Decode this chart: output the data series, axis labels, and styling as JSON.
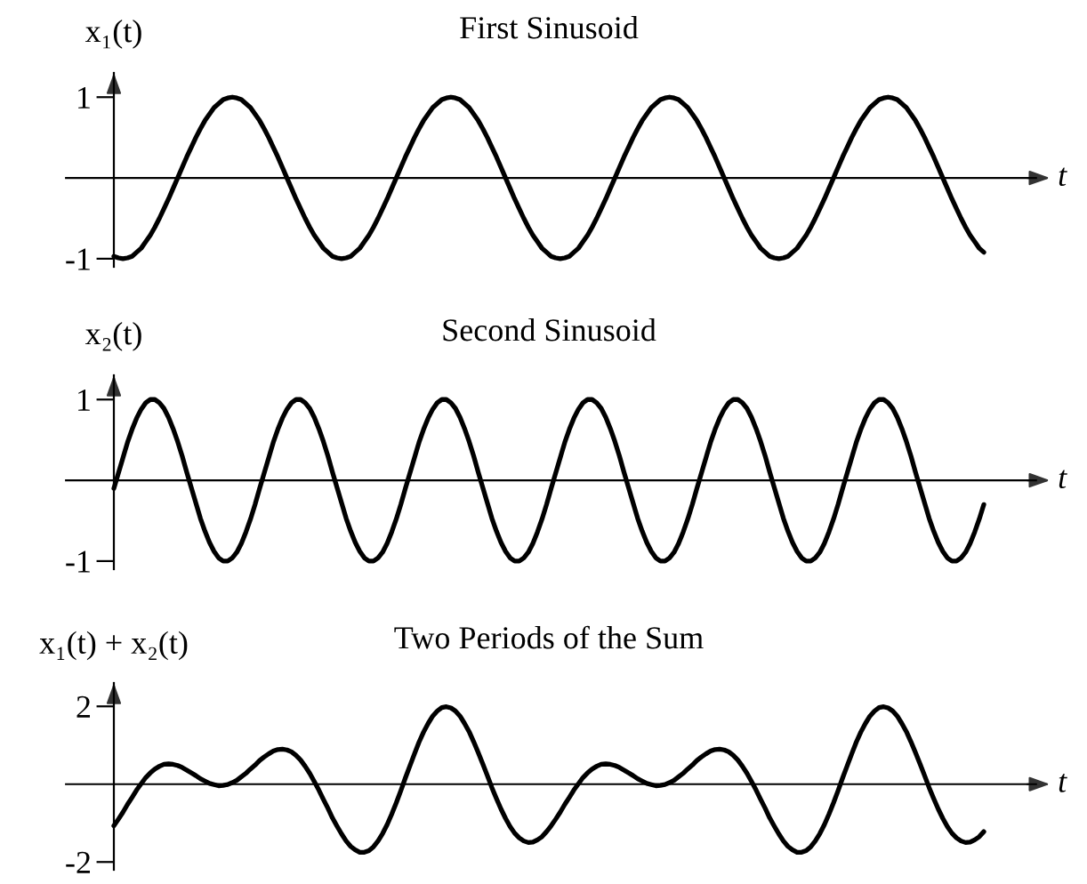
{
  "chart_data": [
    {
      "type": "line",
      "title": "First Sinusoid",
      "ylabel": "x₁(t)",
      "xlabel": "t",
      "ylim": [
        -1.1,
        1.3
      ],
      "yticks": [
        -1,
        1
      ],
      "grid": false,
      "categories": [
        null,
        null,
        null,
        null,
        null,
        null,
        null,
        null,
        null,
        null,
        null,
        null,
        null,
        null,
        null,
        null,
        null,
        null,
        null,
        null,
        null,
        null,
        null,
        null,
        null,
        null,
        null,
        null,
        null,
        null,
        null,
        null,
        null,
        null,
        null,
        null,
        null,
        null,
        null,
        null,
        null,
        null,
        null,
        null,
        null,
        null,
        null,
        null,
        null,
        null,
        null,
        null,
        null,
        null,
        null,
        null,
        null,
        null,
        null,
        null,
        null,
        null,
        null,
        null,
        null,
        null,
        null,
        null,
        null,
        null,
        null,
        null,
        null,
        null,
        null,
        null,
        null,
        null,
        null,
        null,
        null,
        null,
        null,
        null,
        null,
        null,
        null,
        null,
        null,
        null,
        null,
        null,
        null,
        null,
        null,
        null,
        null,
        null,
        null,
        null,
        null,
        null,
        null,
        null,
        null,
        null,
        null,
        null,
        null,
        null,
        null,
        null,
        null,
        null,
        null,
        null,
        null,
        null,
        null,
        null,
        null,
        null,
        null,
        null,
        null,
        null,
        null,
        null,
        null,
        null,
        null,
        null,
        null,
        null,
        null,
        null,
        null,
        null,
        null,
        null,
        null,
        null,
        null,
        null,
        null,
        null,
        null,
        null,
        null,
        null,
        null,
        null,
        null,
        null,
        null,
        null,
        null,
        null,
        null,
        null,
        null,
        null,
        null,
        null,
        null,
        null,
        null,
        null,
        null,
        null,
        null,
        null,
        null,
        null,
        null,
        null,
        null,
        null,
        null,
        null,
        null,
        null,
        null,
        null,
        null,
        null,
        null,
        null,
        null,
        null,
        null,
        null
      ],
      "series": [
        {
          "color": "#000000",
          "values": [
            -0.97,
            -0.99,
            -1,
            -0.99,
            -0.97,
            -0.92,
            -0.87,
            -0.79,
            -0.71,
            -0.61,
            -0.5,
            -0.38,
            -0.26,
            -0.13,
            0,
            0.13,
            0.26,
            0.38,
            0.5,
            0.61,
            0.71,
            0.79,
            0.87,
            0.92,
            0.97,
            0.99,
            1,
            0.99,
            0.97,
            0.92,
            0.87,
            0.79,
            0.71,
            0.61,
            0.5,
            0.38,
            0.26,
            0.13,
            0,
            -0.13,
            -0.26,
            -0.38,
            -0.5,
            -0.61,
            -0.71,
            -0.79,
            -0.87,
            -0.92,
            -0.97,
            -0.99,
            -1,
            -0.99,
            -0.97,
            -0.92,
            -0.87,
            -0.79,
            -0.71,
            -0.61,
            -0.5,
            -0.38,
            -0.26,
            -0.13,
            0,
            0.13,
            0.26,
            0.38,
            0.5,
            0.61,
            0.71,
            0.79,
            0.87,
            0.92,
            0.97,
            0.99,
            1,
            0.99,
            0.97,
            0.92,
            0.87,
            0.79,
            0.71,
            0.61,
            0.5,
            0.38,
            0.26,
            0.13,
            0,
            -0.13,
            -0.26,
            -0.38,
            -0.5,
            -0.61,
            -0.71,
            -0.79,
            -0.87,
            -0.92,
            -0.97,
            -0.99,
            -1,
            -0.99,
            -0.97,
            -0.92,
            -0.87,
            -0.79,
            -0.71,
            -0.61,
            -0.5,
            -0.38,
            -0.26,
            -0.13,
            0,
            0.13,
            0.26,
            0.38,
            0.5,
            0.61,
            0.71,
            0.79,
            0.87,
            0.92,
            0.97,
            0.99,
            1,
            0.99,
            0.97,
            0.92,
            0.87,
            0.79,
            0.71,
            0.61,
            0.5,
            0.38,
            0.26,
            0.13,
            0,
            -0.13,
            -0.26,
            -0.38,
            -0.5,
            -0.61,
            -0.71,
            -0.79,
            -0.87,
            -0.92,
            -0.97,
            -0.99,
            -1,
            -0.99,
            -0.97,
            -0.92,
            -0.87,
            -0.79,
            -0.71,
            -0.61,
            -0.5,
            -0.38,
            -0.26,
            -0.13,
            0,
            0.13,
            0.26,
            0.38,
            0.5,
            0.61,
            0.71,
            0.79,
            0.87,
            0.92,
            0.97,
            0.99,
            1,
            0.99,
            0.97,
            0.92,
            0.87,
            0.79,
            0.71,
            0.61,
            0.5,
            0.38,
            0.26,
            0.13,
            0,
            -0.13,
            -0.26,
            -0.38,
            -0.5,
            -0.61,
            -0.71,
            -0.79,
            -0.87,
            -0.92
          ]
        }
      ]
    },
    {
      "type": "line",
      "title": "Second Sinusoid",
      "ylabel": "x₂(t)",
      "xlabel": "t",
      "ylim": [
        -1.1,
        1.3
      ],
      "yticks": [
        -1,
        1
      ],
      "grid": false,
      "categories": [
        null,
        null,
        null,
        null,
        null,
        null,
        null,
        null,
        null,
        null,
        null,
        null,
        null,
        null,
        null,
        null,
        null,
        null,
        null,
        null,
        null,
        null,
        null,
        null,
        null,
        null,
        null,
        null,
        null,
        null,
        null,
        null,
        null,
        null,
        null,
        null,
        null,
        null,
        null,
        null,
        null,
        null,
        null,
        null,
        null,
        null,
        null,
        null,
        null,
        null,
        null,
        null,
        null,
        null,
        null,
        null,
        null,
        null,
        null,
        null,
        null,
        null,
        null,
        null,
        null,
        null,
        null,
        null,
        null,
        null,
        null,
        null,
        null,
        null,
        null,
        null,
        null,
        null,
        null,
        null,
        null,
        null,
        null,
        null,
        null,
        null,
        null,
        null,
        null,
        null,
        null,
        null,
        null,
        null,
        null,
        null,
        null,
        null,
        null,
        null,
        null,
        null,
        null,
        null,
        null,
        null,
        null,
        null,
        null,
        null,
        null,
        null,
        null,
        null,
        null,
        null,
        null,
        null,
        null,
        null,
        null,
        null,
        null,
        null,
        null,
        null,
        null,
        null,
        null,
        null,
        null,
        null,
        null,
        null,
        null,
        null,
        null,
        null,
        null,
        null,
        null,
        null,
        null,
        null,
        null,
        null,
        null,
        null,
        null,
        null,
        null,
        null,
        null,
        null,
        null,
        null,
        null,
        null,
        null,
        null,
        null,
        null,
        null,
        null,
        null,
        null,
        null,
        null,
        null,
        null,
        null,
        null,
        null,
        null,
        null,
        null,
        null,
        null,
        null,
        null,
        null,
        null,
        null,
        null,
        null,
        null,
        null,
        null,
        null,
        null,
        null,
        null
      ],
      "series": [
        {
          "color": "#000000",
          "values": [
            -0.1,
            0.09,
            0.28,
            0.47,
            0.63,
            0.77,
            0.88,
            0.96,
            1,
            1,
            0.96,
            0.89,
            0.78,
            0.64,
            0.48,
            0.3,
            0.1,
            -0.09,
            -0.28,
            -0.47,
            -0.63,
            -0.77,
            -0.88,
            -0.96,
            -1,
            -1,
            -0.96,
            -0.89,
            -0.78,
            -0.64,
            -0.48,
            -0.3,
            -0.1,
            0.09,
            0.28,
            0.47,
            0.63,
            0.77,
            0.88,
            0.96,
            1,
            1,
            0.96,
            0.89,
            0.78,
            0.64,
            0.48,
            0.3,
            0.1,
            -0.09,
            -0.28,
            -0.47,
            -0.63,
            -0.77,
            -0.88,
            -0.96,
            -1,
            -1,
            -0.96,
            -0.89,
            -0.78,
            -0.64,
            -0.48,
            -0.3,
            -0.1,
            0.09,
            0.28,
            0.47,
            0.63,
            0.77,
            0.88,
            0.96,
            1,
            1,
            0.96,
            0.89,
            0.78,
            0.64,
            0.48,
            0.3,
            0.1,
            -0.09,
            -0.28,
            -0.47,
            -0.63,
            -0.77,
            -0.88,
            -0.96,
            -1,
            -1,
            -0.96,
            -0.89,
            -0.78,
            -0.64,
            -0.48,
            -0.3,
            -0.1,
            0.09,
            0.28,
            0.47,
            0.63,
            0.77,
            0.88,
            0.96,
            1,
            1,
            0.96,
            0.89,
            0.78,
            0.64,
            0.48,
            0.3,
            0.1,
            -0.09,
            -0.28,
            -0.47,
            -0.63,
            -0.77,
            -0.88,
            -0.96,
            -1,
            -1,
            -0.96,
            -0.89,
            -0.78,
            -0.64,
            -0.48,
            -0.3,
            -0.1,
            0.09,
            0.28,
            0.47,
            0.63,
            0.77,
            0.88,
            0.96,
            1,
            1,
            0.96,
            0.89,
            0.78,
            0.64,
            0.48,
            0.3,
            0.1,
            -0.09,
            -0.28,
            -0.47,
            -0.63,
            -0.77,
            -0.88,
            -0.96,
            -1,
            -1,
            -0.96,
            -0.89,
            -0.78,
            -0.64,
            -0.48,
            -0.3,
            -0.1,
            0.09,
            0.28,
            0.47,
            0.63,
            0.77,
            0.88,
            0.96,
            1,
            1,
            0.96,
            0.89,
            0.78,
            0.64,
            0.48,
            0.3,
            0.1,
            -0.09,
            -0.28,
            -0.47,
            -0.63,
            -0.77,
            -0.88,
            -0.96,
            -1,
            -1,
            -0.96,
            -0.89,
            -0.78,
            -0.64,
            -0.48,
            -0.3
          ]
        }
      ]
    },
    {
      "type": "line",
      "title": "Two Periods of the Sum",
      "ylabel": "x₁(t) + x₂(t)",
      "xlabel": "t",
      "ylim": [
        -2.2,
        2.6
      ],
      "yticks": [
        -2,
        2
      ],
      "grid": false,
      "categories": [
        null,
        null,
        null,
        null,
        null,
        null,
        null,
        null,
        null,
        null,
        null,
        null,
        null,
        null,
        null,
        null,
        null,
        null,
        null,
        null,
        null,
        null,
        null,
        null,
        null,
        null,
        null,
        null,
        null,
        null,
        null,
        null,
        null,
        null,
        null,
        null,
        null,
        null,
        null,
        null,
        null,
        null,
        null,
        null,
        null,
        null,
        null,
        null,
        null,
        null,
        null,
        null,
        null,
        null,
        null,
        null,
        null,
        null,
        null,
        null,
        null,
        null,
        null,
        null,
        null,
        null,
        null,
        null,
        null,
        null,
        null,
        null,
        null,
        null,
        null,
        null,
        null,
        null,
        null,
        null,
        null,
        null,
        null,
        null,
        null,
        null,
        null,
        null,
        null,
        null,
        null,
        null,
        null,
        null,
        null,
        null,
        null,
        null,
        null,
        null,
        null,
        null,
        null,
        null,
        null,
        null,
        null,
        null,
        null,
        null,
        null,
        null,
        null,
        null,
        null,
        null,
        null,
        null,
        null,
        null,
        null,
        null,
        null,
        null,
        null,
        null,
        null,
        null,
        null,
        null,
        null,
        null,
        null,
        null,
        null,
        null,
        null,
        null,
        null,
        null,
        null,
        null,
        null,
        null,
        null,
        null,
        null,
        null,
        null,
        null,
        null,
        null,
        null,
        null,
        null,
        null,
        null,
        null,
        null,
        null,
        null,
        null,
        null,
        null,
        null,
        null,
        null,
        null,
        null,
        null,
        null,
        null,
        null,
        null,
        null,
        null,
        null,
        null,
        null,
        null,
        null,
        null,
        null,
        null,
        null,
        null,
        null,
        null,
        null,
        null,
        null,
        null
      ],
      "series": [
        {
          "color": "#000000",
          "values": [
            -1.07,
            -0.9,
            -0.72,
            -0.52,
            -0.34,
            -0.15,
            0.01,
            0.17,
            0.29,
            0.39,
            0.46,
            0.51,
            0.52,
            0.51,
            0.48,
            0.43,
            0.36,
            0.29,
            0.22,
            0.14,
            0.08,
            0.02,
            -0.01,
            -0.04,
            -0.03,
            -0.01,
            0.04,
            0.1,
            0.19,
            0.28,
            0.39,
            0.49,
            0.61,
            0.7,
            0.78,
            0.85,
            0.89,
            0.9,
            0.88,
            0.83,
            0.74,
            0.62,
            0.46,
            0.28,
            0.07,
            -0.15,
            -0.39,
            -0.62,
            -0.87,
            -1.08,
            -1.28,
            -1.46,
            -1.6,
            -1.69,
            -1.75,
            -1.75,
            -1.71,
            -1.61,
            -1.46,
            -1.27,
            -1.04,
            -0.77,
            -0.48,
            -0.17,
            0.16,
            0.47,
            0.78,
            1.08,
            1.34,
            1.56,
            1.75,
            1.88,
            1.97,
            1.99,
            1.96,
            1.88,
            1.75,
            1.56,
            1.35,
            1.09,
            0.81,
            0.52,
            0.22,
            -0.09,
            -0.37,
            -0.64,
            -0.88,
            -1.09,
            -1.26,
            -1.38,
            -1.46,
            -1.5,
            -1.49,
            -1.43,
            -1.35,
            -1.22,
            -1.07,
            -0.9,
            -0.72,
            -0.52,
            -0.34,
            -0.15,
            0.01,
            0.17,
            0.29,
            0.39,
            0.46,
            0.51,
            0.52,
            0.51,
            0.48,
            0.43,
            0.36,
            0.29,
            0.22,
            0.14,
            0.08,
            0.02,
            -0.01,
            -0.04,
            -0.03,
            -0.01,
            0.04,
            0.1,
            0.19,
            0.28,
            0.39,
            0.49,
            0.61,
            0.7,
            0.78,
            0.85,
            0.89,
            0.9,
            0.88,
            0.83,
            0.74,
            0.62,
            0.46,
            0.28,
            0.07,
            -0.15,
            -0.39,
            -0.62,
            -0.87,
            -1.08,
            -1.28,
            -1.46,
            -1.6,
            -1.69,
            -1.75,
            -1.75,
            -1.71,
            -1.61,
            -1.46,
            -1.27,
            -1.04,
            -0.77,
            -0.48,
            -0.17,
            0.16,
            0.47,
            0.78,
            1.08,
            1.34,
            1.56,
            1.75,
            1.88,
            1.97,
            1.99,
            1.96,
            1.88,
            1.75,
            1.56,
            1.35,
            1.09,
            0.81,
            0.52,
            0.22,
            -0.09,
            -0.37,
            -0.64,
            -0.88,
            -1.09,
            -1.26,
            -1.38,
            -1.46,
            -1.5,
            -1.49,
            -1.43,
            -1.35,
            -1.22
          ]
        }
      ]
    }
  ]
}
